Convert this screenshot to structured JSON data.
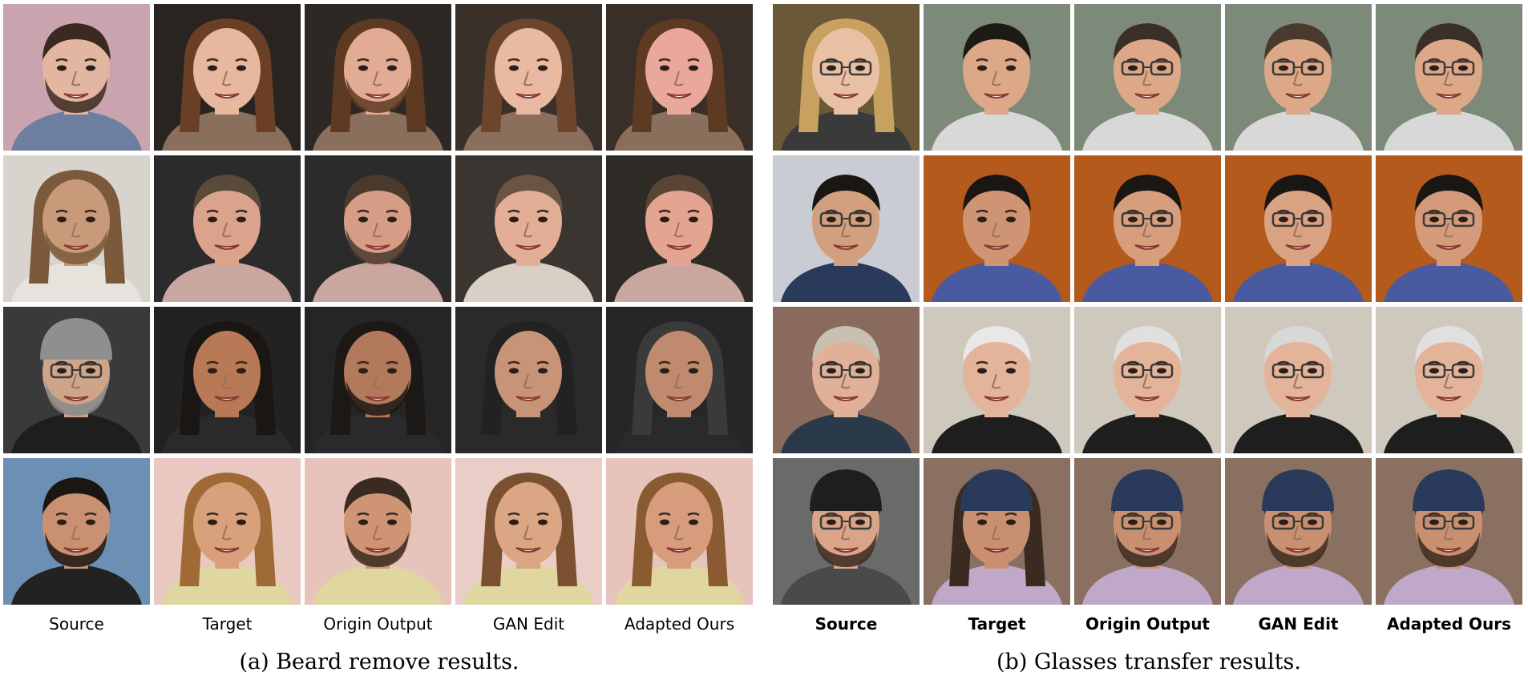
{
  "panels": [
    {
      "caption": "(a) Beard remove results.",
      "columns": [
        "Source",
        "Target",
        "Origin Output",
        "GAN Edit",
        "Adapted Ours"
      ],
      "rows": [
        [
          "face-photo-source-man-beard",
          "face-photo-target-woman-brown-hair",
          "face-photo-origin-output",
          "face-photo-gan-edit",
          "face-photo-adapted-ours"
        ],
        [
          "face-photo-source-man-long-hair",
          "face-photo-target-man-smiling",
          "face-photo-origin-output",
          "face-photo-gan-edit",
          "face-photo-adapted-ours"
        ],
        [
          "face-photo-source-man-beanie-glasses",
          "face-photo-target-woman-dark-hair",
          "face-photo-origin-output",
          "face-photo-gan-edit",
          "face-photo-adapted-ours"
        ],
        [
          "face-photo-source-man-smiling-stubble",
          "face-photo-target-woman-blonde",
          "face-photo-origin-output",
          "face-photo-gan-edit",
          "face-photo-adapted-ours"
        ]
      ]
    },
    {
      "caption": "(b) Glasses transfer results.",
      "columns": [
        "Source",
        "Target",
        "Origin Output",
        "GAN Edit",
        "Adapted Ours"
      ],
      "rows": [
        [
          "face-photo-source-woman-glasses",
          "face-photo-target-young-man",
          "face-photo-origin-output",
          "face-photo-gan-edit",
          "face-photo-adapted-ours"
        ],
        [
          "face-photo-source-man-glasses-pen",
          "face-photo-target-man-orange-bg",
          "face-photo-origin-output",
          "face-photo-gan-edit",
          "face-photo-adapted-ours"
        ],
        [
          "face-photo-source-man-black-glasses",
          "face-photo-target-man-white-hair",
          "face-photo-origin-output",
          "face-photo-gan-edit",
          "face-photo-adapted-ours"
        ],
        [
          "face-photo-source-man-beanie",
          "face-photo-target-person-cap",
          "face-photo-origin-output",
          "face-photo-gan-edit",
          "face-photo-adapted-ours"
        ]
      ]
    }
  ]
}
